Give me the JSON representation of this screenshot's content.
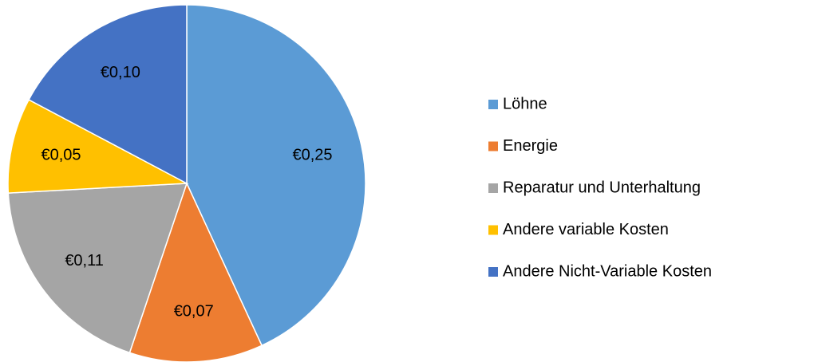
{
  "chart_data": {
    "type": "pie",
    "categories": [
      "Löhne",
      "Energie",
      "Reparatur und Unterhaltung",
      "Andere variable Kosten",
      "Andere Nicht-Variable Kosten"
    ],
    "values": [
      0.25,
      0.07,
      0.11,
      0.05,
      0.1
    ],
    "value_labels": [
      "€0,25",
      "€0,07",
      "€0,11",
      "€0,05",
      "€0,10"
    ],
    "colors": [
      "#5b9bd5",
      "#ed7d31",
      "#a5a5a5",
      "#ffc000",
      "#4472c4"
    ],
    "legend": "right"
  }
}
